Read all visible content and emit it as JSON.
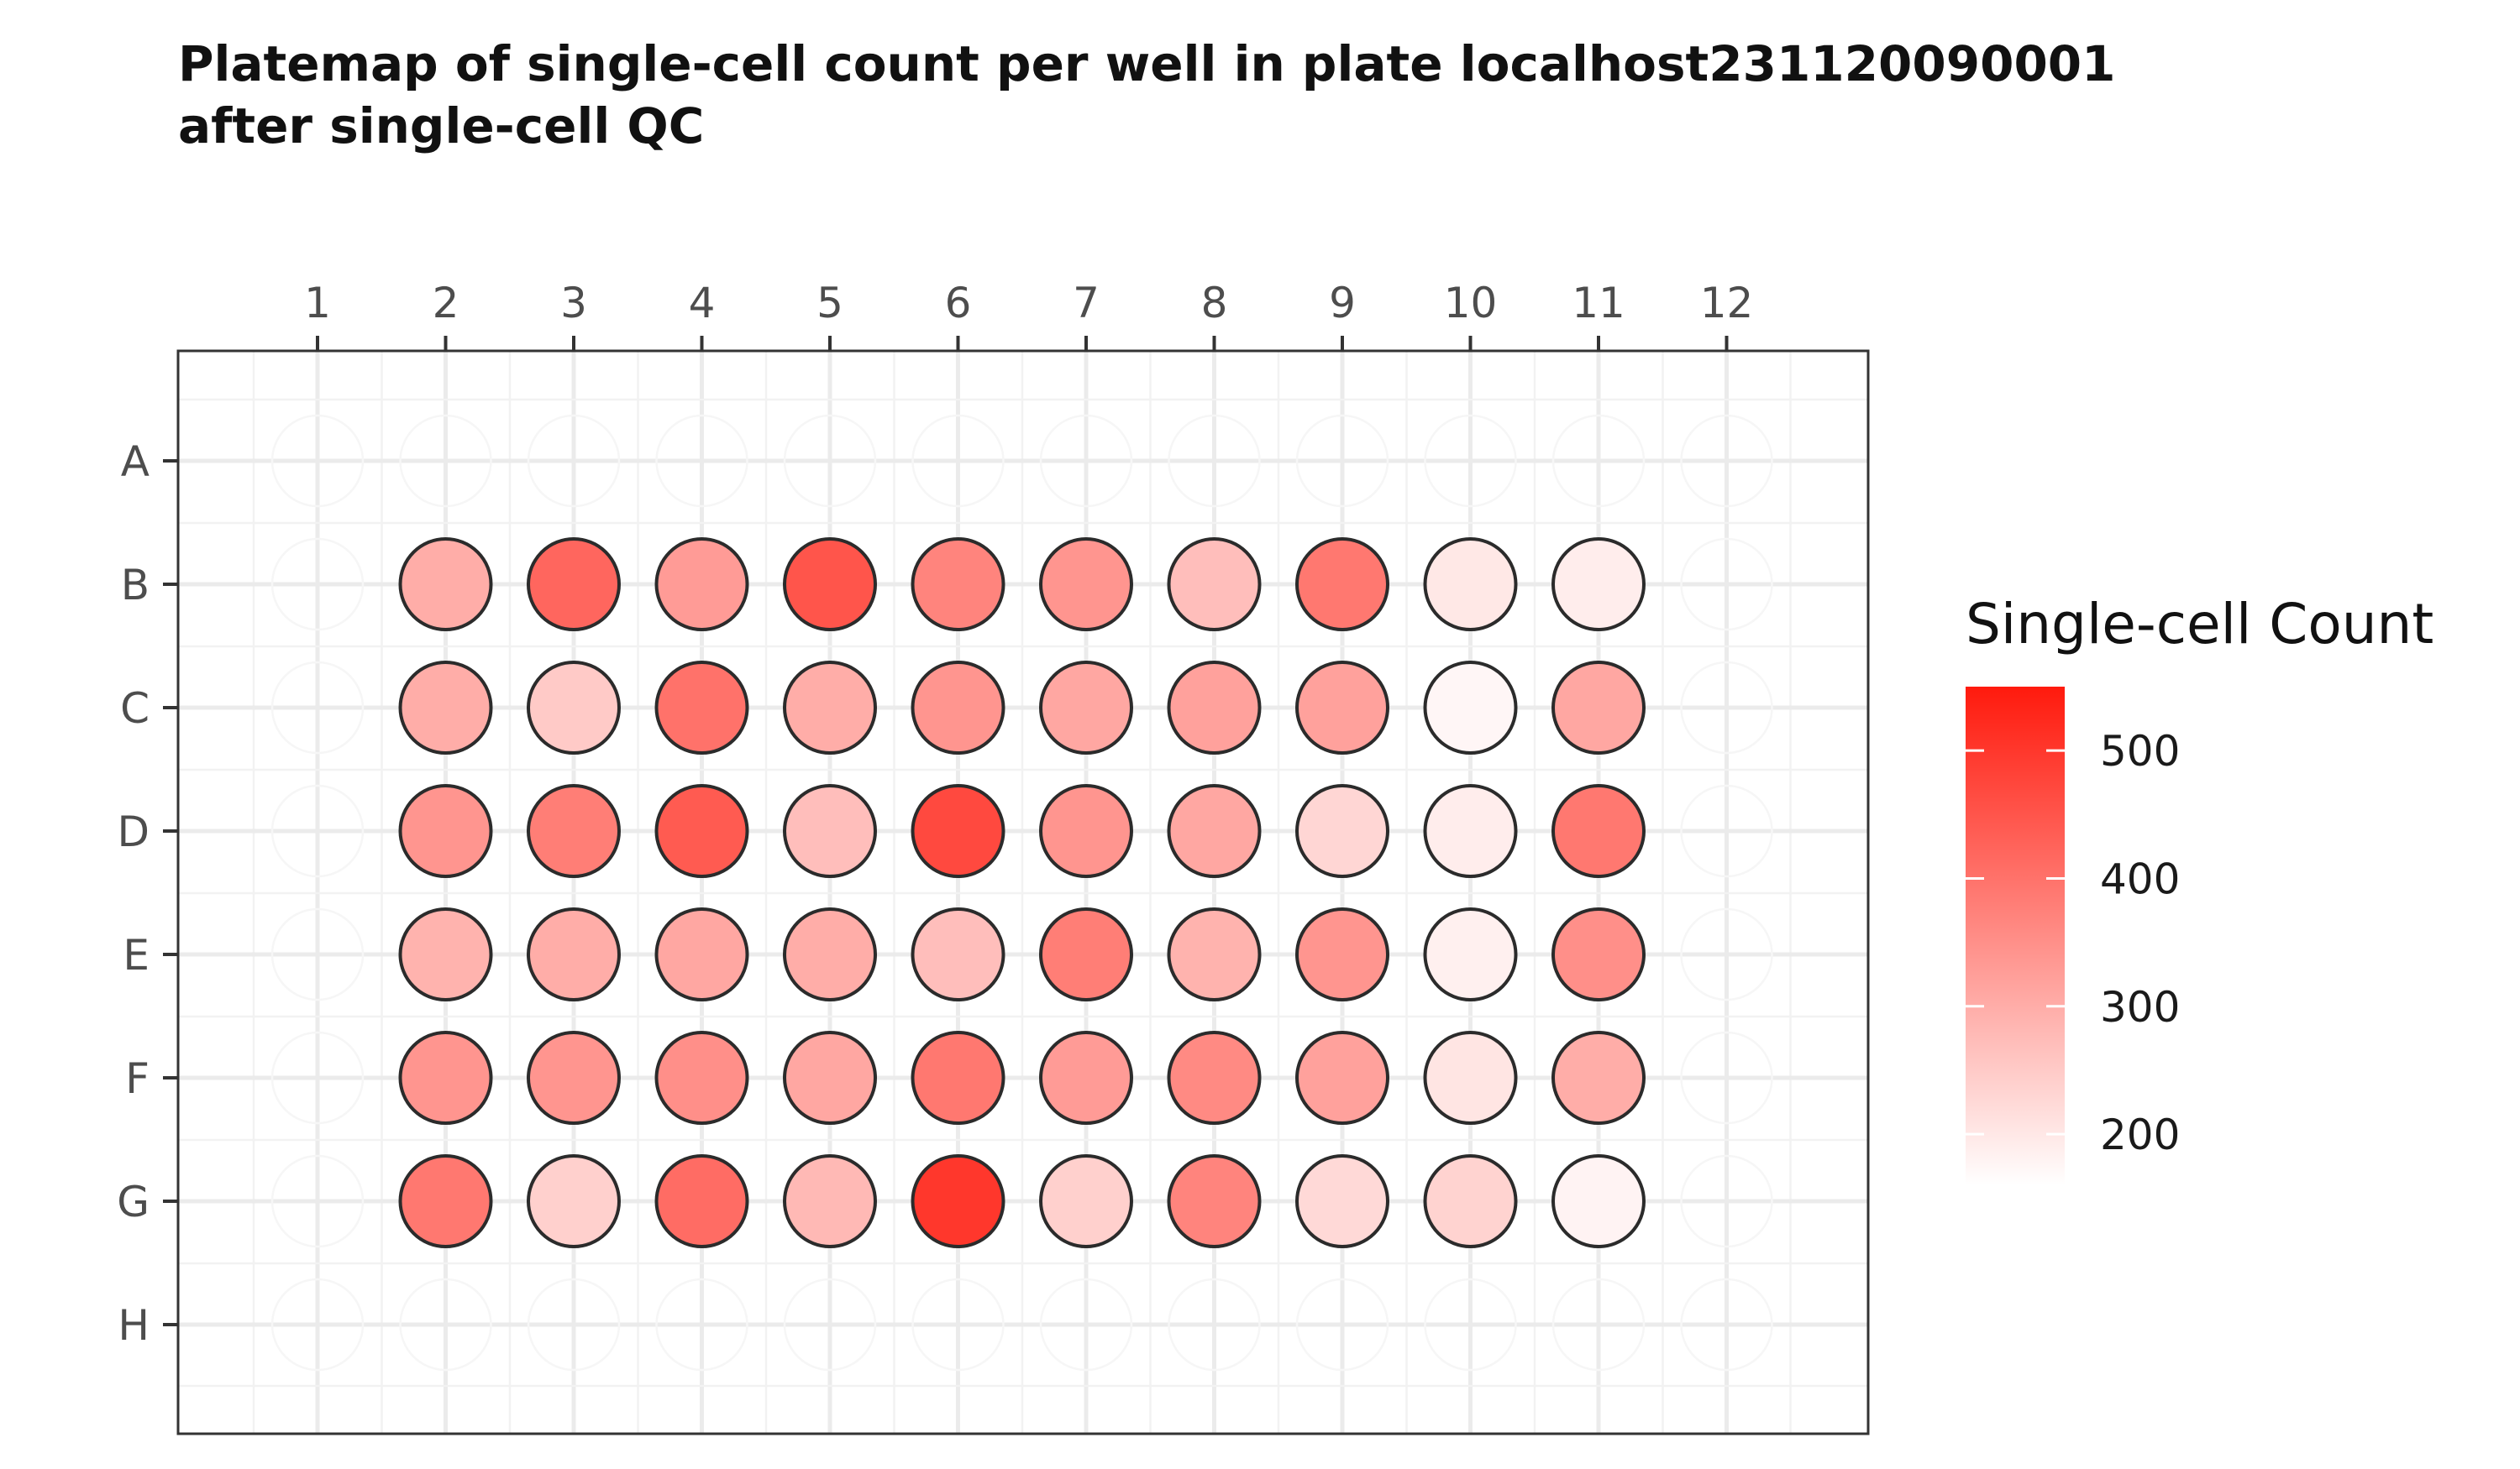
{
  "chart_data": {
    "type": "heatmap",
    "title_lines": [
      "Platemap of single-cell count per well in plate localhost231120090001",
      "after single-cell QC"
    ],
    "xlabel": "",
    "ylabel": "",
    "columns": [
      "1",
      "2",
      "3",
      "4",
      "5",
      "6",
      "7",
      "8",
      "9",
      "10",
      "11",
      "12"
    ],
    "rows": [
      "A",
      "B",
      "C",
      "D",
      "E",
      "F",
      "G",
      "H"
    ],
    "data_columns": [
      "2",
      "3",
      "4",
      "5",
      "6",
      "7",
      "8",
      "9",
      "10",
      "11"
    ],
    "data_rows": [
      "B",
      "C",
      "D",
      "E",
      "F",
      "G"
    ],
    "values": [
      [
        300,
        420,
        330,
        450,
        370,
        340,
        270,
        390,
        200,
        190
      ],
      [
        300,
        250,
        400,
        300,
        340,
        310,
        320,
        320,
        175,
        310
      ],
      [
        340,
        380,
        440,
        270,
        470,
        340,
        310,
        230,
        190,
        390
      ],
      [
        290,
        300,
        310,
        300,
        270,
        380,
        290,
        340,
        185,
        350
      ],
      [
        340,
        340,
        350,
        310,
        390,
        330,
        360,
        320,
        205,
        300
      ],
      [
        390,
        240,
        410,
        280,
        500,
        240,
        370,
        225,
        235,
        180
      ]
    ],
    "legend": {
      "title": "Single-cell Count",
      "ticks": [
        200,
        300,
        400,
        500
      ],
      "range": [
        160,
        550
      ],
      "color_low": "#ffffff",
      "color_high": "#ff1a0d"
    }
  }
}
